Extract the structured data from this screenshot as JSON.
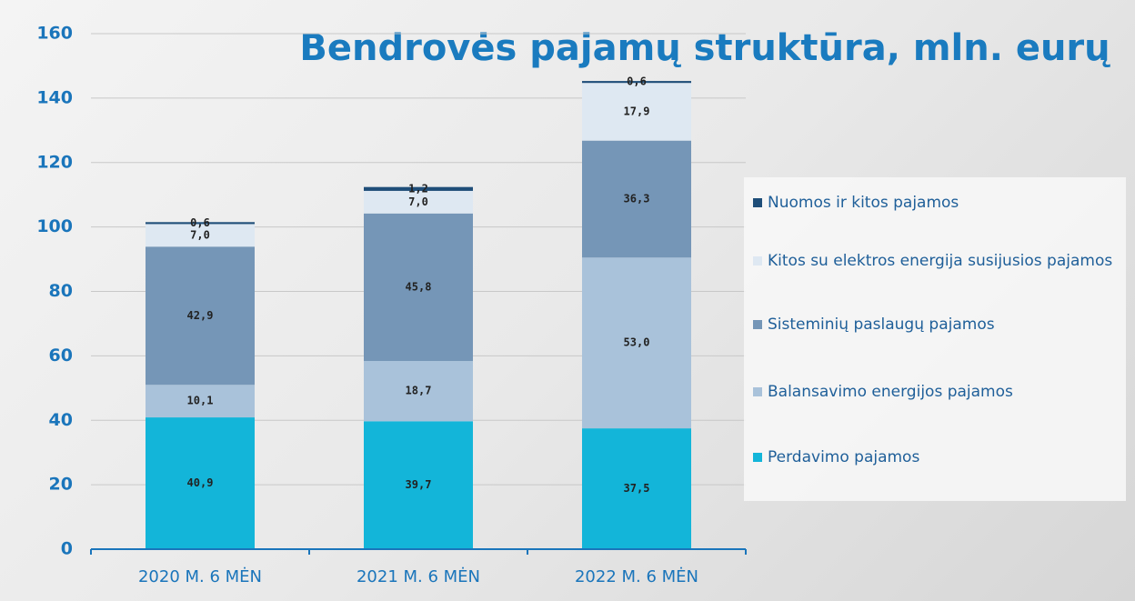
{
  "chart_data": {
    "type": "bar",
    "stacked": true,
    "title": "Bendrovės pajamų struktūra, mln. eurų",
    "categories": [
      "2020 M. 6 MĖN",
      "2021 M. 6 MĖN",
      "2022 M. 6 MĖN"
    ],
    "series": [
      {
        "name": "Perdavimo pajamos",
        "color": "#13b5d9",
        "values": [
          40.9,
          39.7,
          37.5
        ],
        "value_labels": [
          "40,9",
          "39,7",
          "37,5"
        ]
      },
      {
        "name": "Balansavimo energijos pajamos",
        "color": "#a9c2da",
        "values": [
          10.1,
          18.7,
          53.0
        ],
        "value_labels": [
          "10,1",
          "18,7",
          "53,0"
        ]
      },
      {
        "name": "Sisteminių paslaugų pajamos",
        "color": "#7596b7",
        "values": [
          42.9,
          45.8,
          36.3
        ],
        "value_labels": [
          "42,9",
          "45,8",
          "36,3"
        ]
      },
      {
        "name": "Kitos su elektros energija susijusios pajamos",
        "color": "#dee8f2",
        "values": [
          7.0,
          7.0,
          17.9
        ],
        "value_labels": [
          "7,0",
          "7,0",
          "17,9"
        ]
      },
      {
        "name": "Nuomos ir kitos pajamos",
        "color": "#1f4e79",
        "values": [
          0.6,
          1.2,
          0.6
        ],
        "value_labels": [
          "0,6",
          "1,2",
          "0,6"
        ]
      }
    ],
    "ylim": [
      0,
      160
    ],
    "yticks": [
      0,
      20,
      40,
      60,
      80,
      100,
      120,
      140,
      160
    ],
    "grid": true,
    "legend": "right"
  }
}
